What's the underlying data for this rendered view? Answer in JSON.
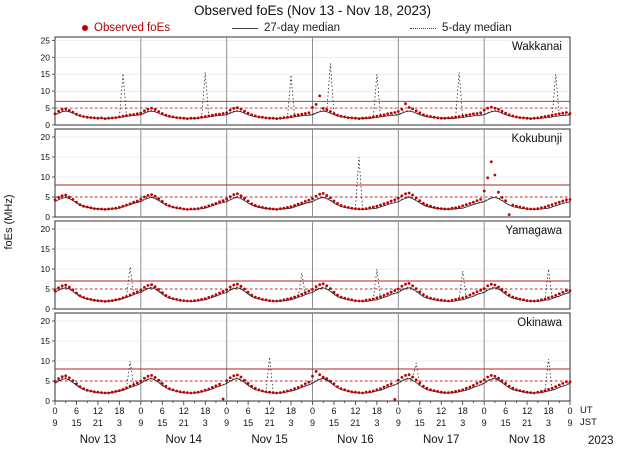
{
  "header": {
    "title": "Observed foEs (Nov 13 - Nov 18, 2023)"
  },
  "legend": {
    "observed": "Observed foEs",
    "median27": "27-day median",
    "median5": "5-day median"
  },
  "axis": {
    "ylabel": "foEs (MHz)",
    "ut_label": "UT",
    "jst_label": "JST",
    "year": "2023",
    "day_labels": [
      "Nov 13",
      "Nov 14",
      "Nov 15",
      "Nov 16",
      "Nov 17",
      "Nov 18"
    ],
    "ut_ticks": [
      0,
      6,
      12,
      18
    ],
    "jst_ticks": [
      9,
      15,
      21,
      3
    ],
    "final_ut": 0,
    "final_jst": 9
  },
  "colors": {
    "observed": "#c00000",
    "median": "#2a2a2a",
    "ref_solid": "#b22222",
    "ref_dotted": "#cc2222",
    "day_grid": "#909090",
    "grid": "#e0e0e0",
    "frame": "#333333"
  },
  "chart_data": {
    "type": "scatter+line",
    "title": "Observed foEs (Nov 13 - Nov 18, 2023)",
    "x_unit": "hours UT from Nov 13 00:00",
    "xlim": [
      0,
      144
    ],
    "x_step_hours": 1,
    "ylabel": "foEs (MHz)",
    "legend_position": "top",
    "grid": true,
    "panels": [
      {
        "station": "Wakkanai",
        "ymax": 26,
        "yticks": [
          0,
          5,
          10,
          15,
          20,
          25
        ],
        "ref_solid": 7,
        "ref_dotted": 5,
        "observed": [
          3.3,
          4.1,
          4.6,
          4.8,
          4.3,
          3.8,
          3.2,
          2.8,
          2.5,
          2.3,
          2.2,
          2.1,
          2.0,
          2.1,
          1.9,
          2.0,
          2.1,
          2.2,
          2.4,
          2.6,
          2.8,
          3.0,
          3.1,
          3.3,
          3.5,
          4.2,
          4.7,
          5.0,
          4.6,
          4.0,
          3.4,
          2.9,
          2.6,
          2.4,
          2.2,
          2.1,
          2.0,
          1.9,
          2.0,
          2.0,
          2.1,
          2.3,
          2.5,
          2.7,
          2.9,
          3.1,
          3.2,
          3.4,
          3.6,
          4.4,
          4.9,
          5.1,
          4.7,
          4.1,
          3.5,
          3.0,
          2.7,
          2.4,
          2.3,
          2.1,
          2.0,
          2.0,
          1.9,
          2.0,
          2.2,
          2.3,
          2.5,
          2.8,
          3.0,
          3.2,
          3.4,
          3.6,
          5.2,
          6.1,
          8.6,
          4.9,
          4.5,
          4.0,
          3.4,
          2.9,
          2.6,
          2.4,
          2.2,
          2.1,
          2.0,
          1.9,
          2.0,
          2.1,
          2.2,
          2.4,
          2.6,
          2.8,
          3.0,
          3.3,
          3.5,
          3.7,
          4.0,
          4.6,
          6.3,
          5.2,
          4.8,
          4.2,
          3.6,
          3.0,
          2.7,
          2.5,
          2.3,
          2.1,
          2.0,
          2.0,
          2.1,
          2.2,
          2.3,
          2.5,
          2.7,
          2.9,
          3.1,
          3.3,
          3.4,
          3.6,
          4.4,
          5.0,
          5.3,
          5.0,
          4.6,
          4.1,
          3.5,
          3.0,
          2.7,
          2.4,
          2.2,
          2.1,
          2.0,
          1.9,
          2.0,
          2.1,
          2.3,
          2.5,
          2.7,
          2.9,
          3.1,
          3.3,
          3.5,
          3.7,
          3.4
        ],
        "median27_daily": [
          3.0,
          3.5,
          3.9,
          4.1,
          3.9,
          3.5,
          3.0,
          2.7,
          2.4,
          2.3,
          2.2,
          2.1,
          2.0,
          2.0,
          1.9,
          1.9,
          2.0,
          2.1,
          2.2,
          2.4,
          2.5,
          2.7,
          2.8,
          2.9
        ],
        "median5_daily": [
          3.2,
          3.7,
          4.1,
          4.3,
          4.0,
          3.6,
          3.1,
          2.8,
          2.5,
          2.3,
          2.2,
          2.1,
          2.0,
          2.0,
          2.0,
          2.0,
          2.1,
          2.2,
          2.3,
          2.5,
          2.6,
          2.8,
          2.9,
          3.1
        ],
        "median5_spikes": [
          [
            19,
            15.2
          ],
          [
            42,
            15.5
          ],
          [
            66,
            14.8
          ],
          [
            77,
            18.2
          ],
          [
            90,
            15.0
          ],
          [
            113,
            15.5
          ],
          [
            140,
            15.0
          ]
        ]
      },
      {
        "station": "Kokubunji",
        "ymax": 22,
        "yticks": [
          0,
          5,
          10,
          15,
          20
        ],
        "ref_solid": 8,
        "ref_dotted": 5,
        "observed": [
          4.3,
          4.9,
          5.3,
          5.5,
          5.0,
          4.4,
          3.7,
          3.1,
          2.7,
          2.5,
          2.3,
          2.1,
          2.0,
          2.0,
          1.9,
          2.0,
          2.1,
          2.2,
          2.4,
          2.7,
          3.0,
          3.3,
          3.7,
          4.0,
          4.4,
          5.0,
          5.4,
          5.6,
          5.2,
          4.6,
          3.9,
          3.2,
          2.8,
          2.5,
          2.3,
          2.2,
          2.0,
          1.9,
          2.0,
          2.0,
          2.1,
          2.3,
          2.5,
          2.8,
          3.1,
          3.4,
          3.8,
          4.1,
          4.5,
          5.1,
          5.6,
          5.8,
          5.3,
          4.7,
          4.0,
          3.3,
          2.9,
          2.6,
          2.4,
          2.2,
          2.1,
          2.0,
          1.9,
          2.1,
          2.2,
          2.4,
          2.6,
          2.9,
          3.2,
          3.5,
          3.9,
          4.2,
          4.6,
          5.2,
          5.7,
          5.9,
          5.4,
          4.8,
          4.0,
          3.4,
          2.9,
          2.6,
          2.4,
          2.2,
          2.1,
          2.0,
          2.0,
          2.1,
          2.3,
          2.5,
          2.7,
          3.0,
          3.3,
          3.6,
          4.0,
          4.3,
          4.7,
          5.3,
          5.8,
          6.0,
          5.5,
          4.8,
          4.1,
          3.4,
          3.0,
          2.7,
          2.4,
          2.2,
          2.1,
          2.0,
          2.0,
          2.2,
          2.3,
          2.5,
          2.8,
          3.1,
          3.4,
          3.7,
          4.1,
          4.4,
          6.5,
          9.8,
          13.8,
          10.5,
          6.2,
          4.9,
          4.1,
          0.6,
          3.0,
          2.7,
          2.5,
          2.3,
          2.1,
          2.0,
          2.0,
          2.1,
          2.3,
          2.5,
          2.8,
          3.1,
          3.4,
          3.7,
          4.0,
          4.3,
          4.4
        ],
        "median27_daily": [
          3.8,
          4.3,
          4.7,
          4.9,
          4.6,
          4.1,
          3.5,
          3.0,
          2.6,
          2.4,
          2.2,
          2.1,
          2.0,
          1.9,
          1.9,
          1.9,
          2.0,
          2.1,
          2.2,
          2.5,
          2.8,
          3.1,
          3.4,
          3.6
        ],
        "median5_daily": [
          4.0,
          4.5,
          4.9,
          5.1,
          4.8,
          4.3,
          3.6,
          3.1,
          2.7,
          2.5,
          2.3,
          2.2,
          2.1,
          2.0,
          2.0,
          2.0,
          2.1,
          2.2,
          2.3,
          2.6,
          2.9,
          3.2,
          3.5,
          3.8
        ],
        "median5_spikes": [
          [
            85,
            15.0
          ]
        ]
      },
      {
        "station": "Yamagawa",
        "ymax": 22,
        "yticks": [
          0,
          5,
          10,
          15,
          20
        ],
        "ref_solid": 7,
        "ref_dotted": 5,
        "observed": [
          4.6,
          5.3,
          5.8,
          6.0,
          5.5,
          4.8,
          4.0,
          3.3,
          2.9,
          2.6,
          2.4,
          2.2,
          2.1,
          2.0,
          1.9,
          2.0,
          2.1,
          2.3,
          2.5,
          2.8,
          3.1,
          3.5,
          3.9,
          4.3,
          4.7,
          5.4,
          5.9,
          6.1,
          5.6,
          4.9,
          4.1,
          3.4,
          2.9,
          2.6,
          2.4,
          2.2,
          2.1,
          2.0,
          2.0,
          2.1,
          2.2,
          2.4,
          2.6,
          2.9,
          3.2,
          3.6,
          4.0,
          4.4,
          4.8,
          5.5,
          6.0,
          6.2,
          5.7,
          5.0,
          4.2,
          3.5,
          3.0,
          2.7,
          2.4,
          2.3,
          2.1,
          2.0,
          2.0,
          2.1,
          2.3,
          2.5,
          2.7,
          3.0,
          3.3,
          3.7,
          4.1,
          4.5,
          4.9,
          5.6,
          6.1,
          6.3,
          5.8,
          5.1,
          4.2,
          3.5,
          3.0,
          2.7,
          2.5,
          2.3,
          2.1,
          2.0,
          2.0,
          2.2,
          2.3,
          2.5,
          2.8,
          3.1,
          3.4,
          3.8,
          4.2,
          4.6,
          5.0,
          5.7,
          6.2,
          6.4,
          5.8,
          5.1,
          4.3,
          3.6,
          3.1,
          2.7,
          2.5,
          2.3,
          2.2,
          2.1,
          2.0,
          2.2,
          2.4,
          2.6,
          2.8,
          3.1,
          3.5,
          3.9,
          4.3,
          4.7,
          5.1,
          5.8,
          6.2,
          6.0,
          5.5,
          4.9,
          4.2,
          3.5,
          3.0,
          2.7,
          2.5,
          2.3,
          2.1,
          2.0,
          2.0,
          2.1,
          2.3,
          2.5,
          2.8,
          3.1,
          3.4,
          3.8,
          4.2,
          4.6,
          4.6
        ],
        "median27_daily": [
          4.1,
          4.7,
          5.1,
          5.3,
          5.0,
          4.4,
          3.7,
          3.1,
          2.7,
          2.5,
          2.3,
          2.1,
          2.0,
          2.0,
          1.9,
          1.9,
          2.0,
          2.2,
          2.3,
          2.6,
          2.9,
          3.2,
          3.6,
          3.9
        ],
        "median5_daily": [
          4.3,
          4.9,
          5.3,
          5.5,
          5.2,
          4.6,
          3.9,
          3.3,
          2.8,
          2.6,
          2.4,
          2.2,
          2.1,
          2.0,
          2.0,
          2.0,
          2.1,
          2.3,
          2.4,
          2.7,
          3.0,
          3.3,
          3.7,
          4.0
        ],
        "median5_spikes": [
          [
            21,
            10.5
          ],
          [
            69,
            9.0
          ],
          [
            90,
            10.0
          ],
          [
            114,
            9.5
          ],
          [
            138,
            10.0
          ]
        ]
      },
      {
        "station": "Okinawa",
        "ymax": 22,
        "yticks": [
          0,
          5,
          10,
          15,
          20
        ],
        "ref_solid": 8,
        "ref_dotted": 5,
        "observed": [
          4.9,
          5.6,
          6.1,
          6.3,
          5.8,
          5.1,
          4.3,
          3.6,
          3.1,
          2.7,
          2.5,
          2.3,
          2.2,
          2.1,
          2.0,
          2.0,
          2.2,
          2.4,
          2.6,
          2.9,
          3.3,
          3.7,
          4.1,
          4.5,
          5.0,
          5.7,
          6.2,
          6.4,
          5.9,
          5.2,
          4.4,
          3.7,
          3.1,
          2.8,
          2.5,
          2.3,
          2.2,
          2.1,
          2.0,
          2.1,
          2.2,
          2.4,
          2.7,
          3.0,
          3.4,
          3.8,
          4.2,
          0.5,
          5.1,
          5.8,
          6.3,
          6.5,
          6.0,
          5.2,
          4.4,
          3.7,
          3.2,
          2.8,
          2.5,
          2.3,
          2.2,
          2.1,
          2.0,
          2.1,
          2.3,
          2.5,
          2.7,
          3.1,
          3.4,
          3.8,
          4.3,
          4.7,
          6.2,
          7.4,
          6.6,
          6.0,
          5.6,
          5.0,
          4.3,
          3.6,
          3.1,
          2.8,
          2.5,
          2.3,
          2.2,
          2.1,
          2.0,
          2.2,
          2.3,
          2.5,
          2.8,
          3.1,
          3.5,
          3.9,
          4.3,
          0.4,
          5.2,
          5.9,
          6.4,
          6.6,
          6.0,
          5.3,
          4.5,
          3.7,
          3.2,
          2.8,
          2.6,
          2.4,
          2.2,
          2.1,
          2.1,
          2.2,
          2.4,
          2.6,
          2.8,
          3.2,
          3.5,
          3.9,
          4.4,
          4.8,
          5.3,
          6.0,
          6.4,
          6.2,
          5.7,
          5.1,
          4.4,
          3.7,
          3.2,
          2.8,
          2.6,
          2.4,
          2.2,
          2.1,
          2.0,
          2.2,
          2.4,
          2.6,
          2.9,
          3.2,
          3.6,
          4.0,
          4.4,
          4.8,
          4.8
        ],
        "median27_daily": [
          4.4,
          5.0,
          5.4,
          5.6,
          5.2,
          4.6,
          3.9,
          3.3,
          2.8,
          2.6,
          2.4,
          2.2,
          2.1,
          2.0,
          2.0,
          2.0,
          2.1,
          2.3,
          2.5,
          2.7,
          3.0,
          3.4,
          3.7,
          4.0
        ],
        "median5_daily": [
          4.6,
          5.2,
          5.6,
          5.8,
          5.4,
          4.8,
          4.1,
          3.4,
          2.9,
          2.7,
          2.5,
          2.3,
          2.2,
          2.1,
          2.0,
          2.1,
          2.2,
          2.4,
          2.6,
          2.8,
          3.1,
          3.5,
          3.8,
          4.1
        ],
        "median5_spikes": [
          [
            21,
            10.0
          ],
          [
            60,
            11.0
          ],
          [
            101,
            9.5
          ],
          [
            138,
            10.5
          ]
        ]
      }
    ]
  }
}
